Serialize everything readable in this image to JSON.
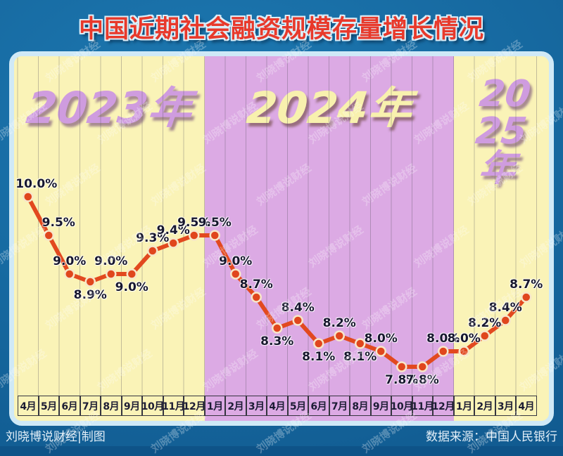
{
  "title": "中国近期社会融资规模存量增长情况",
  "footer": {
    "left": "刘晓博说财经|制图",
    "right": "数据来源：中国人民银行"
  },
  "watermark": {
    "text": "刘晓博说财经"
  },
  "colors": {
    "background_blue": "#16689f",
    "card_border": "#cfe9f7",
    "band_yellow": "#faf3b7",
    "band_purple": "#dcaae4",
    "line": "#e2491f",
    "point_fill": "#e0461d",
    "point_ring": "#f7e6c9",
    "label_text": "#17172e",
    "title_red": "#e8392b",
    "year_purple_text": "#cf9cdf",
    "year_yellow_text": "#f8f1ae",
    "gridline": "#5a5560"
  },
  "chart_data": {
    "type": "line",
    "title": "中国近期社会融资规模存量增长情况",
    "unit": "%",
    "ylim": [
      7.6,
      10.2
    ],
    "grid": "vertical",
    "categories": [
      "4月",
      "5月",
      "6月",
      "7月",
      "8月",
      "9月",
      "10月",
      "11月",
      "12月",
      "1月",
      "2月",
      "3月",
      "4月",
      "5月",
      "6月",
      "7月",
      "8月",
      "9月",
      "10月",
      "11月",
      "12月",
      "1月",
      "2月",
      "3月",
      "4月"
    ],
    "values": [
      10.0,
      9.5,
      9.0,
      8.9,
      9.0,
      9.0,
      9.3,
      9.4,
      9.5,
      9.5,
      9.0,
      8.7,
      8.3,
      8.4,
      8.1,
      8.2,
      8.1,
      8.0,
      7.8,
      7.8,
      8.0,
      8.0,
      8.2,
      8.4,
      8.7
    ],
    "point_labels": [
      "10.0%",
      "9.5%",
      "9.0%",
      "8.9%",
      "9.0%",
      "9.0%",
      "9.3%",
      "9.4%",
      "9.5%",
      "9.5%",
      "9.0%",
      "8.7%",
      "8.3%",
      "8.4%",
      "8.1%",
      "8.2%",
      "8.1%",
      "8.0%",
      "7.8%",
      "7.8%",
      "8.0%",
      "8.0%",
      "8.2%",
      "8.4%",
      "8.7%"
    ],
    "labels_below_indices": [
      3,
      5,
      12,
      14,
      16,
      18,
      19
    ],
    "year_bands": [
      {
        "label": "2023年",
        "display_lines": [
          "2023年"
        ],
        "start": 0,
        "count": 9,
        "bg": "#faf3b7",
        "text_style": "purple"
      },
      {
        "label": "2024年",
        "display_lines": [
          "2024年"
        ],
        "start": 9,
        "count": 12,
        "bg": "#dcaae4",
        "text_style": "yellow"
      },
      {
        "label": "2025年",
        "display_lines": [
          "20",
          "25",
          "年"
        ],
        "start": 21,
        "count": 4,
        "bg": "#faf3b7",
        "text_style": "purple"
      }
    ],
    "source_note": "数据来源：中国人民银行",
    "credit_note": "刘晓博说财经|制图"
  }
}
